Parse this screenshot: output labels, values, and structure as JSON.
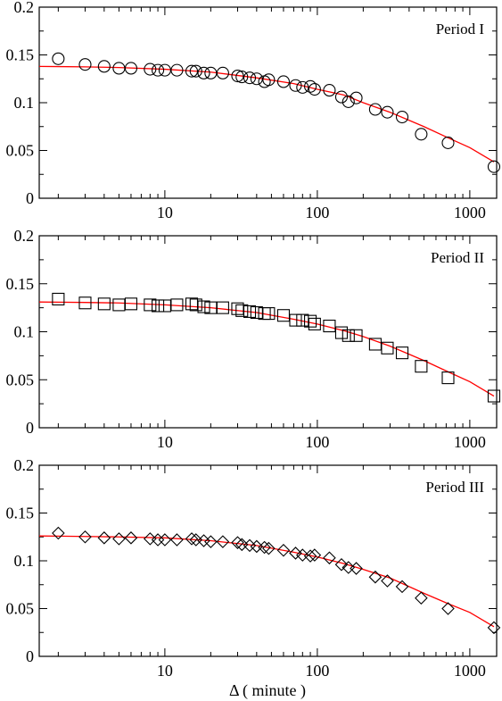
{
  "figure": {
    "xlabel": "Δ   ( minute )"
  },
  "chart_data": [
    {
      "type": "scatter",
      "title": "Period I",
      "marker": "circle",
      "xscale": "log",
      "xlim": [
        1.5,
        1500
      ],
      "ylim": [
        0,
        0.2
      ],
      "xticks": [
        "10",
        "100",
        "1000"
      ],
      "yticks": [
        "0",
        "0.05",
        "0.1",
        "0.15",
        "0.2"
      ],
      "xlabel": "",
      "ylabel": "",
      "grid": false,
      "line_color": "#ff0000",
      "fit": {
        "x": [
          1.5,
          2,
          3,
          5,
          10,
          20,
          40,
          70,
          100,
          150,
          200,
          300,
          500,
          750,
          1000,
          1440
        ],
        "y": [
          0.138,
          0.1378,
          0.1375,
          0.1368,
          0.135,
          0.132,
          0.126,
          0.12,
          0.114,
          0.108,
          0.1,
          0.09,
          0.075,
          0.062,
          0.053,
          0.038
        ]
      },
      "points": {
        "x": [
          2,
          3,
          4,
          5,
          6,
          8,
          9,
          10,
          12,
          15,
          16,
          18,
          20,
          24,
          30,
          32,
          36,
          40,
          45,
          48,
          60,
          72,
          80,
          90,
          96,
          120,
          144,
          160,
          180,
          240,
          288,
          360,
          480,
          720,
          1440
        ],
        "y": [
          0.146,
          0.14,
          0.138,
          0.136,
          0.136,
          0.135,
          0.134,
          0.134,
          0.134,
          0.133,
          0.133,
          0.131,
          0.131,
          0.131,
          0.128,
          0.127,
          0.126,
          0.125,
          0.122,
          0.124,
          0.122,
          0.118,
          0.116,
          0.117,
          0.114,
          0.113,
          0.106,
          0.101,
          0.105,
          0.093,
          0.09,
          0.085,
          0.067,
          0.058,
          0.033
        ]
      }
    },
    {
      "type": "scatter",
      "title": "Period II",
      "marker": "square",
      "xscale": "log",
      "xlim": [
        1.5,
        1500
      ],
      "ylim": [
        0,
        0.2
      ],
      "xticks": [
        "10",
        "100",
        "1000"
      ],
      "yticks": [
        "0",
        "0.05",
        "0.1",
        "0.15",
        "0.2"
      ],
      "xlabel": "",
      "ylabel": "",
      "grid": false,
      "line_color": "#ff0000",
      "fit": {
        "x": [
          1.5,
          2,
          3,
          5,
          10,
          20,
          40,
          70,
          100,
          150,
          200,
          300,
          500,
          750,
          1000,
          1440
        ],
        "y": [
          0.131,
          0.1308,
          0.1305,
          0.13,
          0.128,
          0.125,
          0.12,
          0.113,
          0.108,
          0.101,
          0.095,
          0.085,
          0.07,
          0.057,
          0.048,
          0.033
        ]
      },
      "points": {
        "x": [
          2,
          3,
          4,
          5,
          6,
          8,
          9,
          10,
          12,
          15,
          16,
          18,
          20,
          24,
          30,
          32,
          36,
          40,
          45,
          48,
          60,
          72,
          80,
          90,
          96,
          120,
          144,
          160,
          180,
          240,
          288,
          360,
          480,
          720,
          1440
        ],
        "y": [
          0.134,
          0.13,
          0.129,
          0.128,
          0.129,
          0.128,
          0.127,
          0.127,
          0.128,
          0.129,
          0.128,
          0.126,
          0.125,
          0.125,
          0.124,
          0.122,
          0.121,
          0.12,
          0.119,
          0.119,
          0.117,
          0.112,
          0.112,
          0.111,
          0.108,
          0.106,
          0.099,
          0.096,
          0.096,
          0.087,
          0.083,
          0.078,
          0.064,
          0.052,
          0.033
        ]
      }
    },
    {
      "type": "scatter",
      "title": "Period III",
      "marker": "diamond",
      "xscale": "log",
      "xlim": [
        1.5,
        1500
      ],
      "ylim": [
        0,
        0.2
      ],
      "xticks": [
        "10",
        "100",
        "1000"
      ],
      "yticks": [
        "0",
        "0.05",
        "0.1",
        "0.15",
        "0.2"
      ],
      "xlabel": "Δ   ( minute )",
      "ylabel": "",
      "grid": false,
      "line_color": "#ff0000",
      "fit": {
        "x": [
          1.5,
          2,
          3,
          5,
          10,
          20,
          40,
          70,
          100,
          150,
          200,
          300,
          500,
          750,
          1000,
          1440
        ],
        "y": [
          0.126,
          0.1258,
          0.1255,
          0.125,
          0.124,
          0.121,
          0.116,
          0.109,
          0.104,
          0.097,
          0.091,
          0.082,
          0.066,
          0.054,
          0.046,
          0.031
        ]
      },
      "points": {
        "x": [
          2,
          3,
          4,
          5,
          6,
          8,
          9,
          10,
          12,
          15,
          16,
          18,
          20,
          24,
          30,
          32,
          36,
          40,
          45,
          48,
          60,
          72,
          80,
          90,
          96,
          120,
          144,
          160,
          180,
          240,
          288,
          360,
          480,
          720,
          1440
        ],
        "y": [
          0.129,
          0.125,
          0.124,
          0.123,
          0.124,
          0.123,
          0.122,
          0.122,
          0.122,
          0.123,
          0.122,
          0.121,
          0.12,
          0.12,
          0.119,
          0.117,
          0.116,
          0.115,
          0.114,
          0.113,
          0.111,
          0.108,
          0.106,
          0.105,
          0.106,
          0.103,
          0.096,
          0.093,
          0.092,
          0.083,
          0.079,
          0.073,
          0.061,
          0.05,
          0.03
        ]
      }
    }
  ]
}
